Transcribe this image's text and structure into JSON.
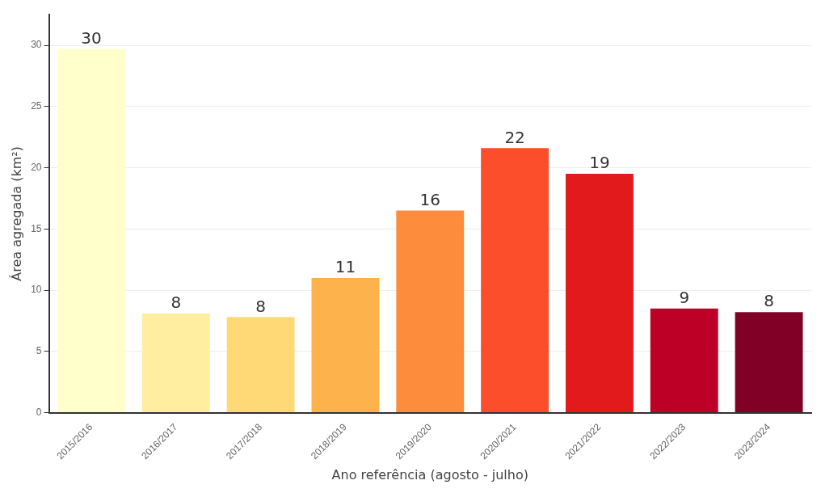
{
  "chart_data": {
    "type": "bar",
    "xlabel": "Ano referência (agosto - julho)",
    "ylabel": "Área agregada (km²)",
    "categories": [
      "2015/2016",
      "2016/2017",
      "2017/2018",
      "2018/2019",
      "2019/2020",
      "2020/2021",
      "2021/2022",
      "2022/2023",
      "2023/2024"
    ],
    "values": [
      29.7,
      8.1,
      7.8,
      11.0,
      16.5,
      21.6,
      19.5,
      8.5,
      8.2
    ],
    "value_labels": [
      "30",
      "8",
      "8",
      "11",
      "16",
      "22",
      "19",
      "9",
      "8"
    ],
    "colors": [
      "#ffffcc",
      "#ffeda0",
      "#fed976",
      "#feb24c",
      "#fd8d3c",
      "#fc4e2a",
      "#e31a1c",
      "#bd0026",
      "#800026"
    ],
    "ylim": [
      0,
      32.5
    ],
    "yticks": [
      0,
      5,
      10,
      15,
      20,
      25,
      30
    ],
    "grid": "y",
    "legend": false
  }
}
